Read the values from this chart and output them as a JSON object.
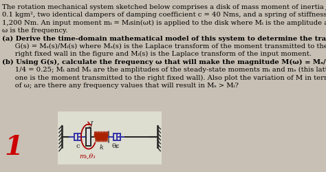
{
  "background_color": "#c8c0b4",
  "diagram_bg": "#e8e4dc",
  "text_color": "#000000",
  "title_line1": "The rotation mechanical system sketched below comprises a disk of mass moment of inertia J=",
  "title_line2": "0.1 kgm², two identical dampers of damping coefficient c = 40 Nms, and a spring of stiffness k =",
  "title_line3": "1,200 Nm. An input moment mᵢ = Mᵢsin(ωt) is applied to the disk where Mᵢ is the amplitude and",
  "title_line4": "ω is the frequency.",
  "part_a": "(a) Derive the time-domain mathematical model of this system to determine the transfer function",
  "part_a2": "      G(s) = Mₛ(s)/Mᵢ(s) where Mₛ(s) is the Laplace transform of the moment transmitted to the",
  "part_a3": "      right fixed wall in the figure and Mᵢ(s) is the Laplace transform of the input moment.",
  "part_b": "(b) Using G(s), calculate the frequency ω that will make the magnitude M(ω) = Mₛ/Mᵢ become",
  "part_b2": "      1/4 = 0.25; Mᵢ and Mₛ are the amplitudes of the steady-state moments mᵢ and mₛ (this latter",
  "part_b3": "      one is the moment transmitted to the right fixed wall). Also plot the variation of M in terms",
  "part_b4": "      of ω; are there any frequency values that will result in Mₛ > Mᵢ?",
  "label_c1": "c",
  "label_c2": "c",
  "label_k": "k",
  "label_theta2": "θ₂",
  "label_mi": "mᵢ,θ₁",
  "label_J": "J",
  "red_number": "1",
  "wall_color": "#222222",
  "damper_color": "#3333aa",
  "spring_color": "#aa2200",
  "disk_edge_color": "#222222",
  "moment_arrow_color": "#aa0000",
  "label_color": "#aa0000",
  "black_label": "#222222"
}
